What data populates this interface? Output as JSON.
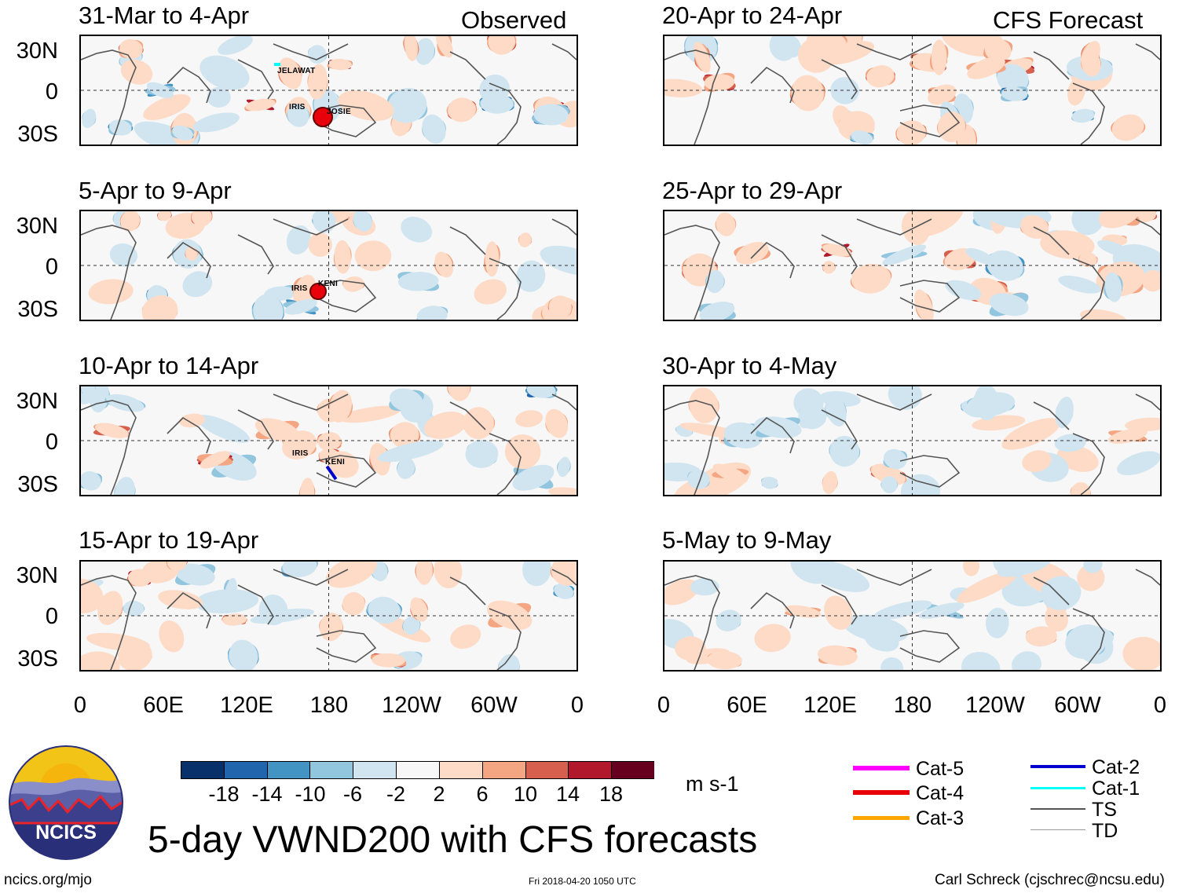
{
  "figure": {
    "title": "5-day VWND200 with CFS forecasts",
    "units": "m s-1",
    "website": "ncics.org/mjo",
    "timestamp": "Fri 2018-04-20 1050 UTC",
    "author": "Carl Schreck (cjschrec@ncsu.edu)",
    "logo_text": "NCICS"
  },
  "columns": {
    "left_header": "Observed",
    "right_header": "CFS Forecast"
  },
  "panels": [
    {
      "period": "31-Mar to 4-Apr",
      "source": "Observed"
    },
    {
      "period": "5-Apr to 9-Apr",
      "source": "Observed"
    },
    {
      "period": "10-Apr to 14-Apr",
      "source": "Observed"
    },
    {
      "period": "15-Apr to 19-Apr",
      "source": "Observed"
    },
    {
      "period": "20-Apr to 24-Apr",
      "source": "CFS Forecast"
    },
    {
      "period": "25-Apr to 29-Apr",
      "source": "CFS Forecast"
    },
    {
      "period": "30-Apr to 4-May",
      "source": "CFS Forecast"
    },
    {
      "period": "5-May to 9-May",
      "source": "CFS Forecast"
    }
  ],
  "storms": [
    {
      "name": "JELAWAT",
      "panel": "31-Mar to 4-Apr"
    },
    {
      "name": "IRIS",
      "panel": "31-Mar to 4-Apr"
    },
    {
      "name": "JOSIE",
      "panel": "31-Mar to 4-Apr"
    },
    {
      "name": "IRIS",
      "panel": "5-Apr to 9-Apr"
    },
    {
      "name": "KENI",
      "panel": "5-Apr to 9-Apr"
    },
    {
      "name": "IRIS",
      "panel": "10-Apr to 14-Apr"
    },
    {
      "name": "KENI",
      "panel": "10-Apr to 14-Apr"
    }
  ],
  "axes": {
    "lat_labels": [
      "30N",
      "0",
      "30S"
    ],
    "lon_labels": [
      "0",
      "60E",
      "120E",
      "180",
      "120W",
      "60W",
      "0"
    ]
  },
  "colorbar": {
    "colors": [
      "#08306b",
      "#2166ac",
      "#4393c3",
      "#92c5de",
      "#d1e5f0",
      "#f7f7f7",
      "#fddbc7",
      "#f4a582",
      "#d6604d",
      "#b2182b",
      "#67001f"
    ],
    "ticks": [
      "-18",
      "-14",
      "-10",
      "-6",
      "-2",
      "2",
      "6",
      "10",
      "14",
      "18"
    ]
  },
  "legend": [
    {
      "label": "Cat-5",
      "color": "#ff00ff"
    },
    {
      "label": "Cat-4",
      "color": "#e8000b"
    },
    {
      "label": "Cat-3",
      "color": "#ffa500"
    },
    {
      "label": "Cat-2",
      "color": "#0000cd"
    },
    {
      "label": "Cat-1",
      "color": "#00ffff"
    },
    {
      "label": "TS",
      "color": "#555555"
    },
    {
      "label": "TD",
      "color": "#999999"
    }
  ]
}
